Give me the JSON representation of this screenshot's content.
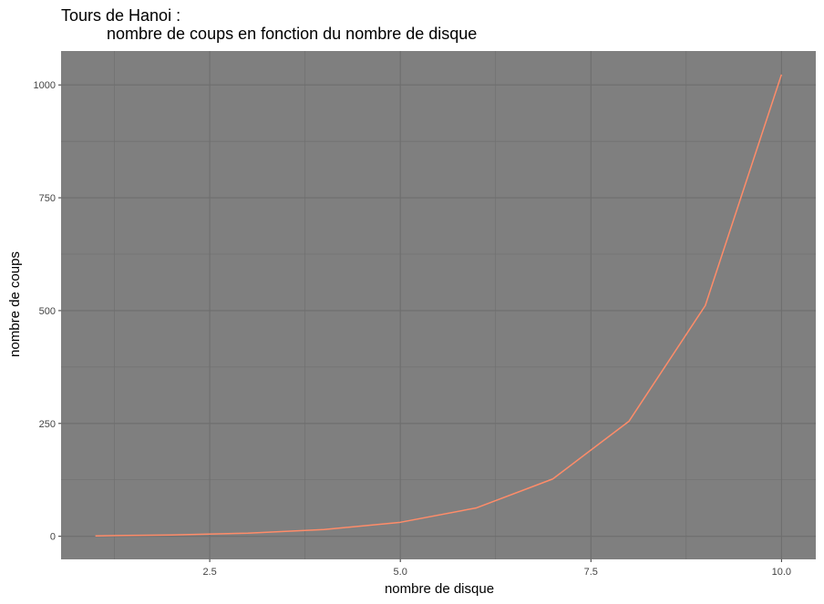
{
  "chart_data": {
    "type": "line",
    "title_lines": [
      "Tours de Hanoi :",
      "nombre de coups en fonction du nombre de disque"
    ],
    "xlabel": "nombre de disque",
    "ylabel": "nombre de coups",
    "x": [
      1,
      2,
      3,
      4,
      5,
      6,
      7,
      8,
      9,
      10
    ],
    "y": [
      1,
      3,
      7,
      15,
      31,
      63,
      127,
      255,
      511,
      1023
    ],
    "xlim": [
      0.55,
      10.45
    ],
    "ylim": [
      -51.1,
      1075.1
    ],
    "x_ticks": [
      2.5,
      5.0,
      7.5,
      10.0
    ],
    "x_tick_labels": [
      "2.5",
      "5.0",
      "7.5",
      "10.0"
    ],
    "x_minor_ticks": [
      1.25,
      3.75,
      6.25,
      8.75
    ],
    "y_ticks": [
      0,
      250,
      500,
      750,
      1000
    ],
    "y_tick_labels": [
      "0",
      "250",
      "500",
      "750",
      "1000"
    ],
    "y_minor_ticks": [
      125,
      375,
      625,
      875
    ],
    "grid": true,
    "colors": {
      "panel_background": "#7f7f7f",
      "grid_line": "#6e6e6e",
      "series_line": "#ff8c69"
    }
  }
}
